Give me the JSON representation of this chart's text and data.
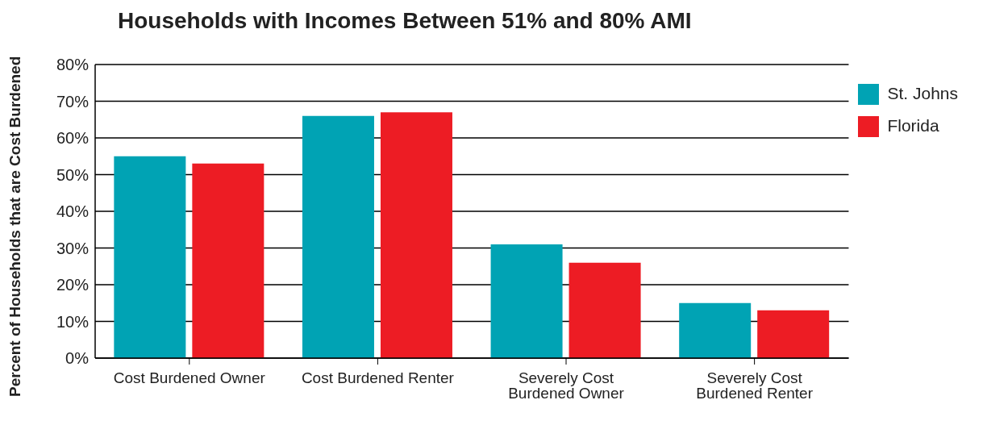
{
  "chart_data": {
    "type": "bar",
    "title": "Households with Incomes Between 51% and 80% AMI",
    "ylabel": "Percent of Households that are Cost Burdened",
    "categories": [
      "Cost Burdened Owner",
      "Cost Burdened Renter",
      "Severely Cost Burdened Owner",
      "Severely Cost Burdened Renter"
    ],
    "series": [
      {
        "name": "St. Johns",
        "color": "#00a3b4",
        "values": [
          55,
          66,
          31,
          15
        ]
      },
      {
        "name": "Florida",
        "color": "#ed1c24",
        "values": [
          53,
          67,
          26,
          13
        ]
      }
    ],
    "ylim": [
      0,
      80
    ],
    "yticks": [
      {
        "value": 0,
        "label": "0%"
      },
      {
        "value": 10,
        "label": "10%"
      },
      {
        "value": 20,
        "label": "20%"
      },
      {
        "value": 30,
        "label": "30%"
      },
      {
        "value": 40,
        "label": "40%"
      },
      {
        "value": 50,
        "label": "50%"
      },
      {
        "value": 60,
        "label": "60%"
      },
      {
        "value": 70,
        "label": "70%"
      },
      {
        "value": 80,
        "label": "80%"
      }
    ],
    "grid": "y",
    "legend": "top right"
  }
}
